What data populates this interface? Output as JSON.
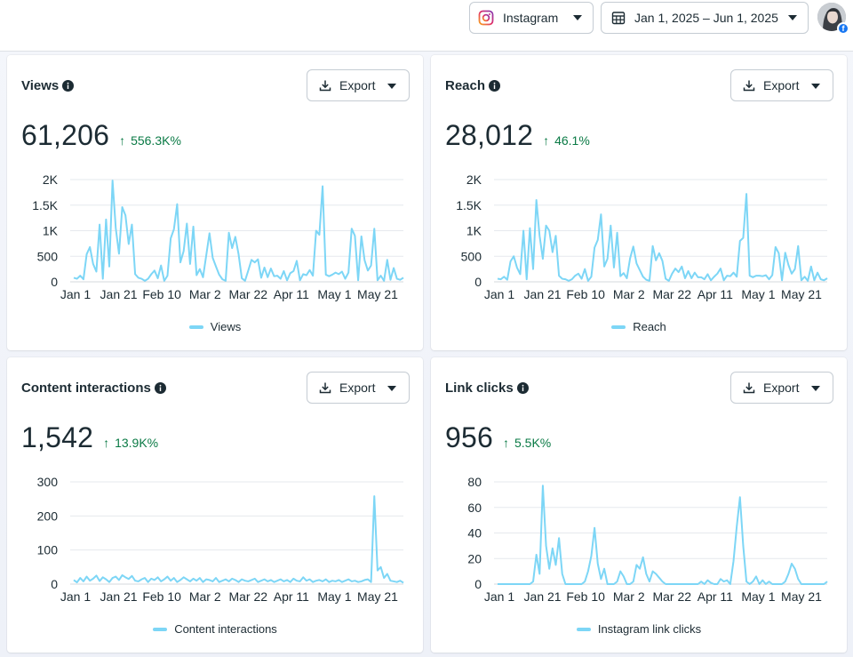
{
  "toolbar": {
    "platform_label": "Instagram",
    "date_range_label": "Jan 1, 2025 – Jun 1, 2025",
    "accent_color": "#7dd6f6",
    "positive_color": "#0a7a45"
  },
  "cards": [
    {
      "title": "Views",
      "value": "61,206",
      "delta": "556.3K%",
      "export_label": "Export",
      "legend": "Views"
    },
    {
      "title": "Reach",
      "value": "28,012",
      "delta": "46.1%",
      "export_label": "Export",
      "legend": "Reach"
    },
    {
      "title": "Content interactions",
      "value": "1,542",
      "delta": "13.9K%",
      "export_label": "Export",
      "legend": "Content interactions"
    },
    {
      "title": "Link clicks",
      "value": "956",
      "delta": "5.5K%",
      "export_label": "Export",
      "legend": "Instagram link clicks"
    }
  ],
  "chart_data": [
    {
      "type": "line",
      "x_tick_labels": [
        "Jan 1",
        "Jan 21",
        "Feb 10",
        "Mar 2",
        "Mar 22",
        "Apr 11",
        "May 1",
        "May 21"
      ],
      "y_tick_labels": [
        "0",
        "500",
        "1K",
        "1.5K",
        "2K"
      ],
      "ylim": [
        0,
        2000
      ],
      "series": [
        {
          "name": "Views",
          "values": [
            80,
            60,
            120,
            50,
            540,
            680,
            350,
            200,
            1120,
            60,
            1220,
            300,
            1980,
            1050,
            550,
            1460,
            1300,
            740,
            1120,
            150,
            80,
            60,
            20,
            60,
            150,
            220,
            70,
            320,
            20,
            120,
            850,
            1030,
            1520,
            380,
            600,
            1140,
            350,
            1080,
            130,
            250,
            90,
            520,
            950,
            470,
            300,
            140,
            50,
            20,
            960,
            660,
            880,
            540,
            70,
            20,
            220,
            430,
            380,
            440,
            80,
            280,
            90,
            260,
            110,
            120,
            60,
            210,
            30,
            170,
            210,
            410,
            30,
            150,
            130,
            230,
            120,
            1000,
            920,
            1870,
            140,
            110,
            140,
            180,
            150,
            200,
            60,
            180,
            1040,
            900,
            30,
            890,
            420,
            220,
            320,
            1040,
            30,
            120,
            20,
            430,
            40,
            270,
            60,
            40,
            80
          ]
        }
      ]
    },
    {
      "type": "line",
      "x_tick_labels": [
        "Jan 1",
        "Jan 21",
        "Feb 10",
        "Mar 2",
        "Mar 22",
        "Apr 11",
        "May 1",
        "May 21"
      ],
      "y_tick_labels": [
        "0",
        "500",
        "1K",
        "1.5K",
        "2K"
      ],
      "ylim": [
        0,
        2000
      ],
      "series": [
        {
          "name": "Reach",
          "values": [
            60,
            50,
            100,
            40,
            400,
            500,
            280,
            150,
            1000,
            50,
            1050,
            250,
            1600,
            900,
            450,
            1100,
            1000,
            580,
            900,
            120,
            60,
            50,
            20,
            50,
            120,
            160,
            60,
            250,
            20,
            100,
            670,
            820,
            1320,
            300,
            450,
            1100,
            280,
            960,
            110,
            170,
            70,
            460,
            690,
            360,
            230,
            100,
            40,
            20,
            700,
            420,
            560,
            410,
            60,
            20,
            160,
            260,
            190,
            300,
            70,
            210,
            70,
            180,
            90,
            90,
            50,
            150,
            30,
            100,
            160,
            260,
            30,
            120,
            110,
            180,
            100,
            800,
            860,
            1720,
            120,
            90,
            120,
            120,
            110,
            130,
            50,
            130,
            680,
            560,
            30,
            570,
            330,
            160,
            250,
            700,
            30,
            100,
            20,
            300,
            30,
            180,
            50,
            30,
            70
          ]
        }
      ]
    },
    {
      "type": "line",
      "x_tick_labels": [
        "Jan 1",
        "Jan 21",
        "Feb 10",
        "Mar 2",
        "Mar 22",
        "Apr 11",
        "May 1",
        "May 21"
      ],
      "y_tick_labels": [
        "0",
        "100",
        "200",
        "300"
      ],
      "ylim": [
        0,
        300
      ],
      "series": [
        {
          "name": "Content interactions",
          "values": [
            12,
            5,
            18,
            8,
            22,
            10,
            16,
            25,
            9,
            20,
            14,
            6,
            18,
            22,
            12,
            26,
            20,
            15,
            24,
            10,
            8,
            14,
            18,
            6,
            16,
            12,
            20,
            8,
            14,
            22,
            10,
            18,
            6,
            12,
            20,
            14,
            8,
            16,
            10,
            18,
            6,
            14,
            12,
            8,
            18,
            6,
            10,
            14,
            8,
            16,
            12,
            6,
            14,
            10,
            8,
            12,
            16,
            6,
            10,
            14,
            8,
            12,
            6,
            10,
            14,
            8,
            12,
            6,
            16,
            10,
            8,
            20,
            10,
            14,
            6,
            10,
            12,
            8,
            14,
            6,
            10,
            8,
            12,
            6,
            10,
            14,
            8,
            10,
            6,
            8,
            12,
            14,
            6,
            258,
            40,
            50,
            18,
            30,
            10,
            8,
            6,
            10,
            4
          ]
        }
      ]
    },
    {
      "type": "line",
      "x_tick_labels": [
        "Jan 1",
        "Jan 21",
        "Feb 10",
        "Mar 2",
        "Mar 22",
        "Apr 11",
        "May 1",
        "May 21"
      ],
      "y_tick_labels": [
        "0",
        "20",
        "40",
        "60",
        "80"
      ],
      "ylim": [
        0,
        80
      ],
      "series": [
        {
          "name": "Instagram link clicks",
          "values": [
            0,
            0,
            0,
            0,
            0,
            0,
            0,
            0,
            0,
            0,
            0,
            2,
            23,
            8,
            77,
            30,
            12,
            28,
            15,
            36,
            8,
            0,
            0,
            0,
            0,
            0,
            0,
            2,
            10,
            22,
            44,
            16,
            4,
            12,
            0,
            0,
            0,
            2,
            10,
            6,
            0,
            0,
            2,
            15,
            12,
            21,
            8,
            2,
            10,
            8,
            5,
            2,
            0,
            0,
            0,
            0,
            0,
            0,
            0,
            0,
            0,
            0,
            0,
            2,
            0,
            3,
            1,
            0,
            0,
            4,
            2,
            3,
            0,
            18,
            45,
            68,
            30,
            2,
            0,
            2,
            6,
            0,
            3,
            0,
            2,
            0,
            0,
            0,
            0,
            2,
            8,
            16,
            12,
            4,
            0,
            0,
            0,
            0,
            0,
            0,
            0,
            0,
            2
          ]
        }
      ]
    }
  ]
}
